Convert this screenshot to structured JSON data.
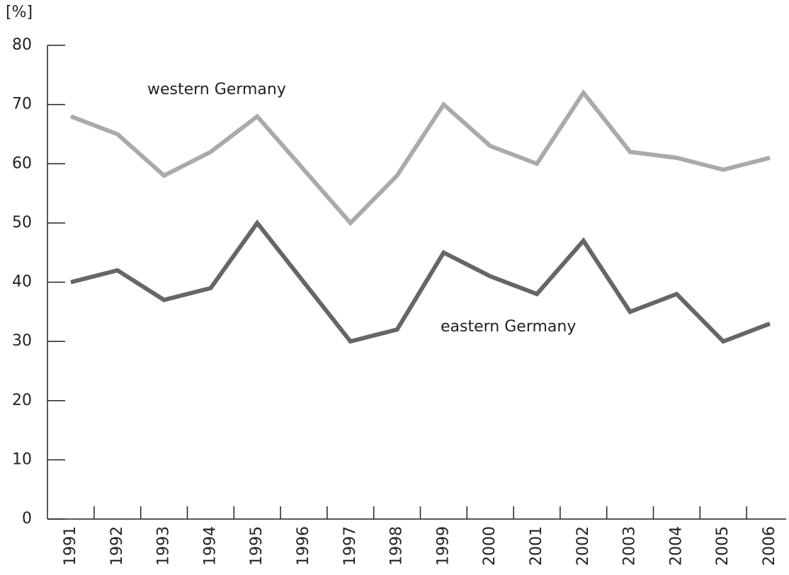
{
  "chart_data": {
    "type": "line",
    "y_label": "[%]",
    "categories": [
      "1991",
      "1992",
      "1993",
      "1994",
      "1995",
      "1996",
      "1997",
      "1998",
      "1999",
      "2000",
      "2001",
      "2002",
      "2003",
      "2004",
      "2005",
      "2006"
    ],
    "series": [
      {
        "name": "western Germany",
        "color": "#aaaaab",
        "values": [
          68,
          65,
          58,
          62,
          68,
          59,
          50,
          58,
          70,
          63,
          60,
          72,
          62,
          61,
          59,
          61
        ]
      },
      {
        "name": "eastern Germany",
        "color": "#666666",
        "values": [
          40,
          42,
          37,
          39,
          50,
          40,
          30,
          32,
          45,
          41,
          38,
          47,
          35,
          38,
          30,
          33
        ]
      }
    ],
    "ylim": [
      0,
      80
    ],
    "yticks": [
      0,
      10,
      20,
      30,
      40,
      50,
      60,
      70,
      80
    ]
  }
}
